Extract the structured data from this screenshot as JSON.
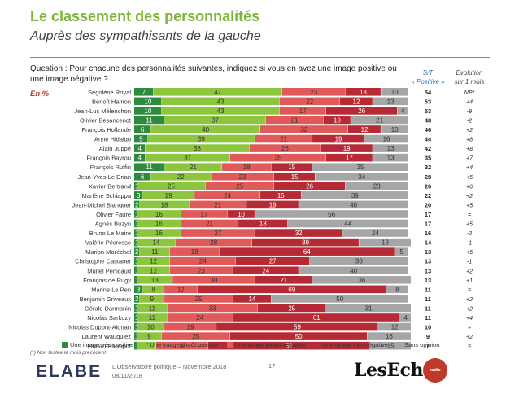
{
  "header": {
    "title": "Le classement des personnalités",
    "subtitle": "Auprès des sympathisants de la gauche"
  },
  "question": "Question : Pour chacune des personnalités suivantes, indiquez si vous en avez une image positive ou une image négative ?",
  "unit_label": "En %",
  "columns": {
    "st_label_1": "S/T",
    "st_label_2": "« Positive »",
    "evol_label_1": "Evolution",
    "evol_label_2": "sur 1 mois"
  },
  "colors": {
    "tres_positive": "#2e8b3e",
    "plutot_positive": "#8cc63f",
    "plutot_negative": "#e05a5a",
    "tres_negative": "#b52a35",
    "sans_opinion": "#a6a6a6",
    "accent": "#7fb43a"
  },
  "chart_data": {
    "type": "bar",
    "orientation": "horizontal",
    "stacked": true,
    "xlim": [
      0,
      100
    ],
    "categories": [
      "Ségolène Royal",
      "Benoît Hamon",
      "Jean-Luc Mélenchon",
      "Olivier Besancenot",
      "François Hollande",
      "Anne Hidalgo",
      "Alain Juppé",
      "François Bayrou",
      "François Ruffin",
      "Jean-Yves Le Drian",
      "Xavier Bertrand",
      "Marlène Schiappa",
      "Jean-Michel Blanquer",
      "Olivier Faure",
      "Agnès Buzyn",
      "Bruno Le Maire",
      "Valérie Pécresse",
      "Marion Maréchal",
      "Christophe Castaner",
      "Muriel Pénicaud",
      "François de Rugy",
      "Marine Le Pen",
      "Benjamin Griveaux",
      "Gérald Darmanin",
      "Nicolas Sarkozy",
      "Nicolas Dupont-Aignan",
      "Laurent Wauquiez",
      "Florian Philippot"
    ],
    "series": [
      {
        "name": "Une image très positive",
        "values": [
          7,
          10,
          10,
          11,
          6,
          5,
          4,
          4,
          11,
          6,
          1,
          3,
          2,
          1,
          1,
          1,
          1,
          2,
          1,
          1,
          1,
          3,
          2,
          1,
          1,
          1,
          1,
          1
        ]
      },
      {
        "name": "Une image plutôt positive",
        "values": [
          47,
          43,
          43,
          37,
          40,
          39,
          38,
          31,
          21,
          22,
          25,
          19,
          18,
          16,
          16,
          16,
          14,
          11,
          12,
          12,
          13,
          8,
          9,
          11,
          11,
          10,
          9,
          7
        ]
      },
      {
        "name": "Une image plutôt négative",
        "values": [
          23,
          22,
          17,
          21,
          32,
          21,
          26,
          35,
          18,
          23,
          25,
          24,
          21,
          17,
          21,
          27,
          28,
          18,
          24,
          23,
          30,
          12,
          25,
          33,
          24,
          19,
          25,
          19
        ]
      },
      {
        "name": "Une image très négative",
        "values": [
          13,
          12,
          26,
          10,
          12,
          19,
          19,
          17,
          15,
          15,
          26,
          15,
          19,
          10,
          18,
          32,
          39,
          64,
          27,
          24,
          21,
          69,
          14,
          25,
          61,
          59,
          50,
          59
        ]
      },
      {
        "name": "Sans opinion",
        "values": [
          10,
          13,
          4,
          21,
          10,
          16,
          13,
          13,
          35,
          34,
          23,
          39,
          40,
          56,
          44,
          24,
          19,
          5,
          36,
          40,
          36,
          8,
          50,
          31,
          4,
          12,
          16,
          15
        ]
      }
    ],
    "st_positive": [
      54,
      53,
      53,
      48,
      46,
      44,
      42,
      35,
      32,
      28,
      26,
      22,
      20,
      17,
      17,
      16,
      14,
      13,
      13,
      13,
      13,
      11,
      11,
      11,
      11,
      10,
      9,
      7
    ],
    "evolution": [
      "NP*",
      "+4",
      "-9",
      "-2",
      "+2",
      "+8",
      "+8",
      "+7",
      "+4",
      "+5",
      "+6",
      "+2",
      "+5",
      "=",
      "+5",
      "-2",
      "-1",
      "+5",
      "-1",
      "+2",
      "+1",
      "=",
      "+2",
      "+2",
      "+4",
      "=",
      "+2",
      "="
    ]
  },
  "footnote": "(*) Non testée le mois précédent",
  "footer": {
    "logo": "ELABE",
    "line1": "L'Observatoire politique – Novembre 2018",
    "line2": "08/11/2018",
    "page": "17",
    "partner": "LesEchos",
    "partner2": "radio classique"
  }
}
